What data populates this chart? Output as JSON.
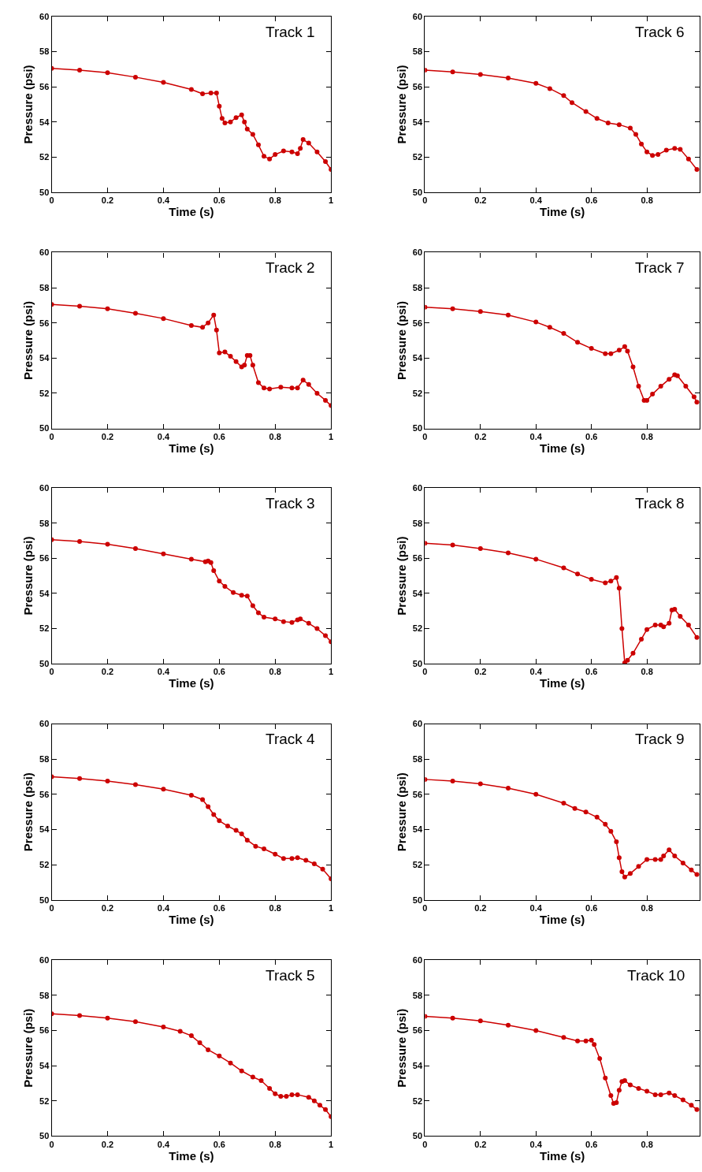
{
  "chart_data": [
    {
      "type": "line",
      "title": "Track 1",
      "xlabel": "Time (s)",
      "ylabel": "Pressure (psi)",
      "color": "#cc0000",
      "marker": "circle",
      "xlim": [
        0,
        1
      ],
      "xticks": [
        0,
        0.2,
        0.4,
        0.6,
        0.8,
        1
      ],
      "ylim": [
        50,
        60
      ],
      "yticks": [
        50,
        52,
        54,
        56,
        58,
        60
      ],
      "x": [
        0,
        0.1,
        0.2,
        0.3,
        0.4,
        0.5,
        0.54,
        0.57,
        0.59,
        0.6,
        0.61,
        0.62,
        0.64,
        0.66,
        0.68,
        0.69,
        0.7,
        0.72,
        0.74,
        0.76,
        0.78,
        0.8,
        0.83,
        0.86,
        0.88,
        0.89,
        0.9,
        0.92,
        0.95,
        0.98,
        1.0
      ],
      "values": [
        57.05,
        56.95,
        56.8,
        56.55,
        56.25,
        55.85,
        55.6,
        55.65,
        55.65,
        54.9,
        54.2,
        53.95,
        54.0,
        54.25,
        54.4,
        54.0,
        53.6,
        53.3,
        52.7,
        52.05,
        51.9,
        52.15,
        52.35,
        52.3,
        52.2,
        52.5,
        53.0,
        52.8,
        52.3,
        51.75,
        51.3
      ]
    },
    {
      "type": "line",
      "title": "Track 2",
      "xlabel": "Time (s)",
      "ylabel": "Pressure (psi)",
      "color": "#cc0000",
      "marker": "circle",
      "xlim": [
        0,
        1
      ],
      "xticks": [
        0,
        0.2,
        0.4,
        0.6,
        0.8,
        1
      ],
      "ylim": [
        50,
        60
      ],
      "yticks": [
        50,
        52,
        54,
        56,
        58,
        60
      ],
      "x": [
        0,
        0.1,
        0.2,
        0.3,
        0.4,
        0.5,
        0.54,
        0.56,
        0.58,
        0.59,
        0.6,
        0.62,
        0.64,
        0.66,
        0.68,
        0.69,
        0.7,
        0.71,
        0.72,
        0.74,
        0.76,
        0.78,
        0.82,
        0.86,
        0.88,
        0.9,
        0.92,
        0.95,
        0.98,
        1.0
      ],
      "values": [
        57.05,
        56.95,
        56.8,
        56.55,
        56.25,
        55.85,
        55.75,
        56.0,
        56.45,
        55.6,
        54.3,
        54.35,
        54.1,
        53.8,
        53.5,
        53.6,
        54.15,
        54.15,
        53.6,
        52.6,
        52.3,
        52.25,
        52.35,
        52.3,
        52.3,
        52.75,
        52.5,
        52.0,
        51.6,
        51.3
      ]
    },
    {
      "type": "line",
      "title": "Track 3",
      "xlabel": "Time (s)",
      "ylabel": "Pressure (psi)",
      "color": "#cc0000",
      "marker": "circle",
      "xlim": [
        0,
        1
      ],
      "xticks": [
        0,
        0.2,
        0.4,
        0.6,
        0.8,
        1
      ],
      "ylim": [
        50,
        60
      ],
      "yticks": [
        50,
        52,
        54,
        56,
        58,
        60
      ],
      "x": [
        0,
        0.1,
        0.2,
        0.3,
        0.4,
        0.5,
        0.55,
        0.56,
        0.57,
        0.58,
        0.6,
        0.62,
        0.65,
        0.68,
        0.7,
        0.72,
        0.74,
        0.76,
        0.8,
        0.83,
        0.86,
        0.88,
        0.89,
        0.92,
        0.95,
        0.98,
        1.0
      ],
      "values": [
        57.05,
        56.95,
        56.8,
        56.55,
        56.25,
        55.95,
        55.8,
        55.85,
        55.75,
        55.3,
        54.7,
        54.4,
        54.05,
        53.9,
        53.85,
        53.3,
        52.9,
        52.65,
        52.55,
        52.4,
        52.35,
        52.5,
        52.55,
        52.3,
        52.0,
        51.6,
        51.25
      ]
    },
    {
      "type": "line",
      "title": "Track 4",
      "xlabel": "Time (s)",
      "ylabel": "Pressure (psi)",
      "color": "#cc0000",
      "marker": "circle",
      "xlim": [
        0,
        1
      ],
      "xticks": [
        0,
        0.2,
        0.4,
        0.6,
        0.8,
        1
      ],
      "ylim": [
        50,
        60
      ],
      "yticks": [
        50,
        52,
        54,
        56,
        58,
        60
      ],
      "x": [
        0,
        0.1,
        0.2,
        0.3,
        0.4,
        0.5,
        0.54,
        0.56,
        0.58,
        0.6,
        0.63,
        0.66,
        0.68,
        0.7,
        0.73,
        0.76,
        0.8,
        0.83,
        0.86,
        0.88,
        0.91,
        0.94,
        0.97,
        1.0
      ],
      "values": [
        57.0,
        56.9,
        56.75,
        56.55,
        56.3,
        55.95,
        55.7,
        55.3,
        54.85,
        54.5,
        54.2,
        53.95,
        53.75,
        53.4,
        53.05,
        52.9,
        52.6,
        52.35,
        52.35,
        52.4,
        52.25,
        52.05,
        51.75,
        51.2
      ]
    },
    {
      "type": "line",
      "title": "Track 5",
      "xlabel": "Time (s)",
      "ylabel": "Pressure (psi)",
      "color": "#cc0000",
      "marker": "circle",
      "xlim": [
        0,
        1
      ],
      "xticks": [
        0,
        0.2,
        0.4,
        0.6,
        0.8,
        1
      ],
      "ylim": [
        50,
        60
      ],
      "yticks": [
        50,
        52,
        54,
        56,
        58,
        60
      ],
      "x": [
        0,
        0.1,
        0.2,
        0.3,
        0.4,
        0.46,
        0.5,
        0.53,
        0.56,
        0.6,
        0.64,
        0.68,
        0.72,
        0.75,
        0.78,
        0.8,
        0.82,
        0.84,
        0.86,
        0.88,
        0.92,
        0.94,
        0.96,
        0.98,
        1.0
      ],
      "values": [
        56.95,
        56.85,
        56.7,
        56.5,
        56.2,
        55.95,
        55.7,
        55.3,
        54.9,
        54.55,
        54.15,
        53.7,
        53.35,
        53.15,
        52.7,
        52.4,
        52.25,
        52.25,
        52.35,
        52.35,
        52.2,
        52.0,
        51.75,
        51.5,
        51.1
      ]
    },
    {
      "type": "line",
      "title": "Track 6",
      "xlabel": "Time (s)",
      "ylabel": "Pressure (psi)",
      "color": "#cc0000",
      "marker": "circle",
      "xlim": [
        0,
        0.99
      ],
      "xticks": [
        0,
        0.2,
        0.4,
        0.6,
        0.8
      ],
      "ylim": [
        50,
        60
      ],
      "yticks": [
        50,
        52,
        54,
        56,
        58,
        60
      ],
      "x": [
        0,
        0.1,
        0.2,
        0.3,
        0.4,
        0.45,
        0.5,
        0.53,
        0.58,
        0.62,
        0.66,
        0.7,
        0.74,
        0.76,
        0.78,
        0.8,
        0.82,
        0.84,
        0.87,
        0.9,
        0.92,
        0.95,
        0.98
      ],
      "values": [
        56.95,
        56.85,
        56.7,
        56.5,
        56.2,
        55.9,
        55.5,
        55.1,
        54.6,
        54.2,
        53.95,
        53.85,
        53.65,
        53.3,
        52.75,
        52.3,
        52.1,
        52.15,
        52.4,
        52.5,
        52.45,
        51.9,
        51.3
      ]
    },
    {
      "type": "line",
      "title": "Track 7",
      "xlabel": "Time (s)",
      "ylabel": "Pressure (psi)",
      "color": "#cc0000",
      "marker": "circle",
      "xlim": [
        0,
        0.99
      ],
      "xticks": [
        0,
        0.2,
        0.4,
        0.6,
        0.8
      ],
      "ylim": [
        50,
        60
      ],
      "yticks": [
        50,
        52,
        54,
        56,
        58,
        60
      ],
      "x": [
        0,
        0.1,
        0.2,
        0.3,
        0.4,
        0.45,
        0.5,
        0.55,
        0.6,
        0.65,
        0.67,
        0.7,
        0.72,
        0.73,
        0.75,
        0.77,
        0.79,
        0.8,
        0.82,
        0.85,
        0.88,
        0.9,
        0.91,
        0.94,
        0.97,
        0.98
      ],
      "values": [
        56.9,
        56.8,
        56.65,
        56.45,
        56.05,
        55.75,
        55.4,
        54.9,
        54.55,
        54.25,
        54.25,
        54.45,
        54.65,
        54.4,
        53.5,
        52.4,
        51.6,
        51.6,
        51.95,
        52.4,
        52.8,
        53.05,
        53.0,
        52.4,
        51.8,
        51.5
      ]
    },
    {
      "type": "line",
      "title": "Track 8",
      "xlabel": "Time (s)",
      "ylabel": "Pressure (psi)",
      "color": "#cc0000",
      "marker": "circle",
      "xlim": [
        0,
        0.99
      ],
      "xticks": [
        0,
        0.2,
        0.4,
        0.6,
        0.8
      ],
      "ylim": [
        50,
        60
      ],
      "yticks": [
        50,
        52,
        54,
        56,
        58,
        60
      ],
      "x": [
        0,
        0.1,
        0.2,
        0.3,
        0.4,
        0.5,
        0.55,
        0.6,
        0.65,
        0.67,
        0.69,
        0.7,
        0.71,
        0.72,
        0.73,
        0.75,
        0.78,
        0.8,
        0.83,
        0.85,
        0.86,
        0.88,
        0.89,
        0.9,
        0.92,
        0.95,
        0.98
      ],
      "values": [
        56.85,
        56.75,
        56.55,
        56.3,
        55.95,
        55.45,
        55.1,
        54.8,
        54.6,
        54.7,
        54.9,
        54.3,
        52.0,
        50.05,
        50.2,
        50.6,
        51.4,
        51.95,
        52.2,
        52.2,
        52.1,
        52.3,
        53.05,
        53.1,
        52.7,
        52.2,
        51.5
      ]
    },
    {
      "type": "line",
      "title": "Track 9",
      "xlabel": "Time (s)",
      "ylabel": "Pressure (psi)",
      "color": "#cc0000",
      "marker": "circle",
      "xlim": [
        0,
        0.99
      ],
      "xticks": [
        0,
        0.2,
        0.4,
        0.6,
        0.8
      ],
      "ylim": [
        50,
        60
      ],
      "yticks": [
        50,
        52,
        54,
        56,
        58,
        60
      ],
      "x": [
        0,
        0.1,
        0.2,
        0.3,
        0.4,
        0.5,
        0.54,
        0.58,
        0.62,
        0.65,
        0.67,
        0.69,
        0.7,
        0.71,
        0.72,
        0.74,
        0.77,
        0.8,
        0.83,
        0.85,
        0.86,
        0.88,
        0.9,
        0.93,
        0.96,
        0.98
      ],
      "values": [
        56.85,
        56.75,
        56.6,
        56.35,
        56.0,
        55.5,
        55.2,
        55.0,
        54.7,
        54.3,
        53.9,
        53.3,
        52.4,
        51.6,
        51.3,
        51.5,
        51.9,
        52.3,
        52.3,
        52.3,
        52.5,
        52.85,
        52.5,
        52.1,
        51.7,
        51.45
      ]
    },
    {
      "type": "line",
      "title": "Track 10",
      "xlabel": "Time (s)",
      "ylabel": "Pressure (psi)",
      "color": "#cc0000",
      "marker": "circle",
      "xlim": [
        0,
        0.99
      ],
      "xticks": [
        0,
        0.2,
        0.4,
        0.6,
        0.8
      ],
      "ylim": [
        50,
        60
      ],
      "yticks": [
        50,
        52,
        54,
        56,
        58,
        60
      ],
      "x": [
        0,
        0.1,
        0.2,
        0.3,
        0.4,
        0.5,
        0.55,
        0.58,
        0.6,
        0.61,
        0.63,
        0.65,
        0.67,
        0.68,
        0.69,
        0.7,
        0.71,
        0.72,
        0.74,
        0.77,
        0.8,
        0.83,
        0.85,
        0.88,
        0.9,
        0.93,
        0.96,
        0.98
      ],
      "values": [
        56.8,
        56.7,
        56.55,
        56.3,
        56.0,
        55.6,
        55.4,
        55.4,
        55.45,
        55.2,
        54.4,
        53.3,
        52.3,
        51.85,
        51.9,
        52.6,
        53.1,
        53.15,
        52.9,
        52.7,
        52.55,
        52.35,
        52.35,
        52.45,
        52.3,
        52.05,
        51.75,
        51.5
      ]
    }
  ]
}
